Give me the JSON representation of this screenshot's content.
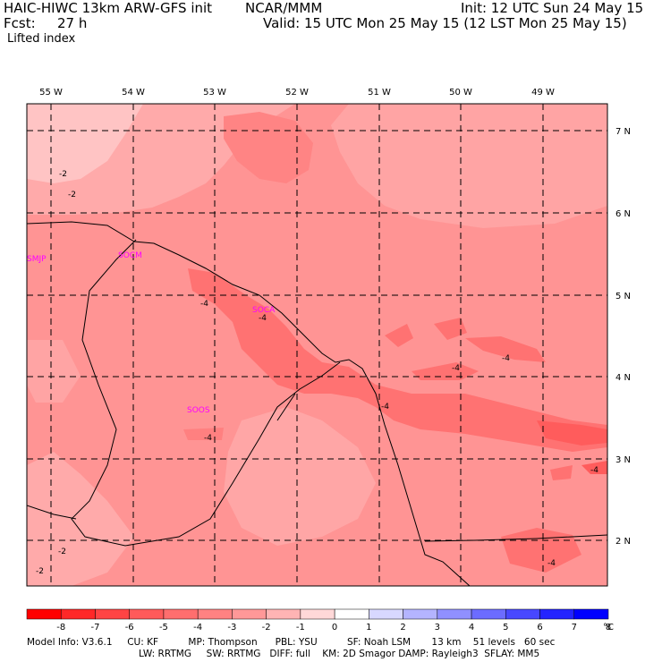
{
  "header": {
    "model": "HAIC-HIWC 13km ARW-GFS init",
    "org": "NCAR/MMM",
    "init": "Init: 12 UTC Sun 24 May 15",
    "fcst_label": "Fcst:",
    "fcst_value": "27 h",
    "valid": "Valid: 15 UTC Mon 25 May 15 (12 LST Mon 25 May 15)",
    "field": "Lifted index"
  },
  "map": {
    "lon_labels": [
      "55 W",
      "54 W",
      "53 W",
      "52 W",
      "51 W",
      "50 W",
      "49 W"
    ],
    "lat_labels": [
      "7 N",
      "6 N",
      "5 N",
      "4 N",
      "3 N",
      "2 N"
    ],
    "stations": [
      "SMJP",
      "SOCM",
      "SOCA",
      "SOOS"
    ],
    "contour_labels": [
      "-2",
      "-2",
      "-4",
      "-4",
      "-4",
      "-4",
      "-4",
      "-4",
      "-4",
      "-4",
      "-2",
      "-2"
    ]
  },
  "colorbar": {
    "ticks": [
      "-8",
      "-7",
      "-6",
      "-5",
      "-4",
      "-3",
      "-2",
      "-1",
      "0",
      "1",
      "2",
      "3",
      "4",
      "5",
      "6",
      "7",
      "8"
    ],
    "unit": "°C",
    "colors": [
      "#ff0000",
      "#ff2828",
      "#ff4444",
      "#ff5a5a",
      "#ff6e6e",
      "#ff8282",
      "#ff9898",
      "#ffb4b4",
      "#ffd8d8",
      "#ffffff",
      "#d8d8ff",
      "#b4b4ff",
      "#9090ff",
      "#6c6cff",
      "#4848ff",
      "#2424ff",
      "#0000ff"
    ]
  },
  "footer": {
    "line1": "Model Info: V3.6.1     CU: KF          MP: Thompson      PBL: YSU          SF: Noah LSM       13 km    51 levels   60 sec",
    "line2": "LW: RRTMG     SW: RRTMG   DIFF: full    KM: 2D Smagor DAMP: Rayleigh3  SFLAY: MM5"
  },
  "colors": {
    "li_minus2": "#ffa6a6",
    "li_minus3": "#ff8c8c",
    "li_minus4": "#ff7272",
    "li_minus5": "#ff5c5c",
    "station": "#ff00ff"
  }
}
